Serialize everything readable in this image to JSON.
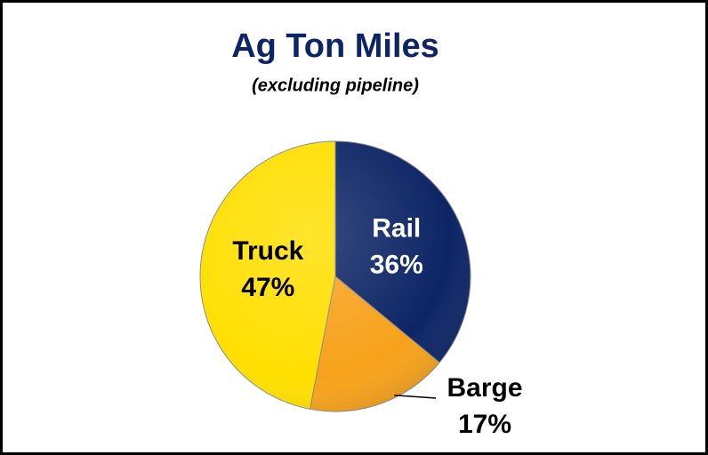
{
  "chart_data": {
    "type": "pie",
    "title": "Ag Ton Miles",
    "subtitle": "(excluding pipeline)",
    "categories": [
      "Rail",
      "Barge",
      "Truck"
    ],
    "values": [
      36,
      17,
      47
    ],
    "value_labels": [
      "36%",
      "17%",
      "47%"
    ],
    "colors": [
      "#0d2566",
      "#f7a21b",
      "#ffdf00"
    ],
    "label_colors": [
      "#ffffff",
      "#000000",
      "#000000"
    ]
  }
}
